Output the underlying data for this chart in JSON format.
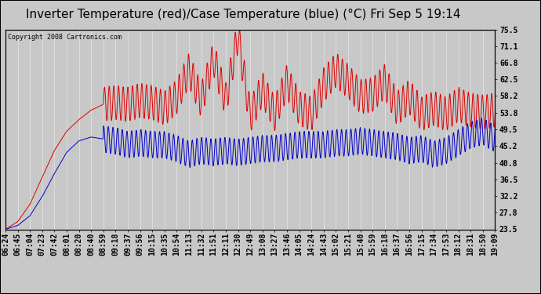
{
  "title": "Inverter Temperature (red)/Case Temperature (blue) (°C) Fri Sep 5 19:14",
  "copyright": "Copyright 2008 Cartronics.com",
  "y_ticks": [
    23.5,
    27.8,
    32.2,
    36.5,
    40.8,
    45.2,
    49.5,
    53.8,
    58.2,
    62.5,
    66.8,
    71.1,
    75.5
  ],
  "y_min": 23.5,
  "y_max": 75.5,
  "x_labels": [
    "06:24",
    "06:45",
    "07:04",
    "07:23",
    "07:42",
    "08:01",
    "08:20",
    "08:40",
    "08:59",
    "09:18",
    "09:37",
    "09:56",
    "10:15",
    "10:35",
    "10:54",
    "11:13",
    "11:32",
    "11:51",
    "12:11",
    "12:30",
    "12:49",
    "13:08",
    "13:27",
    "13:46",
    "14:05",
    "14:24",
    "14:43",
    "15:02",
    "15:21",
    "15:40",
    "15:59",
    "16:18",
    "16:37",
    "16:56",
    "17:15",
    "17:34",
    "17:53",
    "18:12",
    "18:31",
    "18:50",
    "19:09"
  ],
  "plot_bg_color": "#c8c8c8",
  "fig_bg_color": "#c8c8c8",
  "grid_color": "#aaaaaa",
  "red_color": "#dd0000",
  "blue_color": "#0000cc",
  "title_fontsize": 11,
  "tick_fontsize": 7,
  "copyright_fontsize": 6
}
